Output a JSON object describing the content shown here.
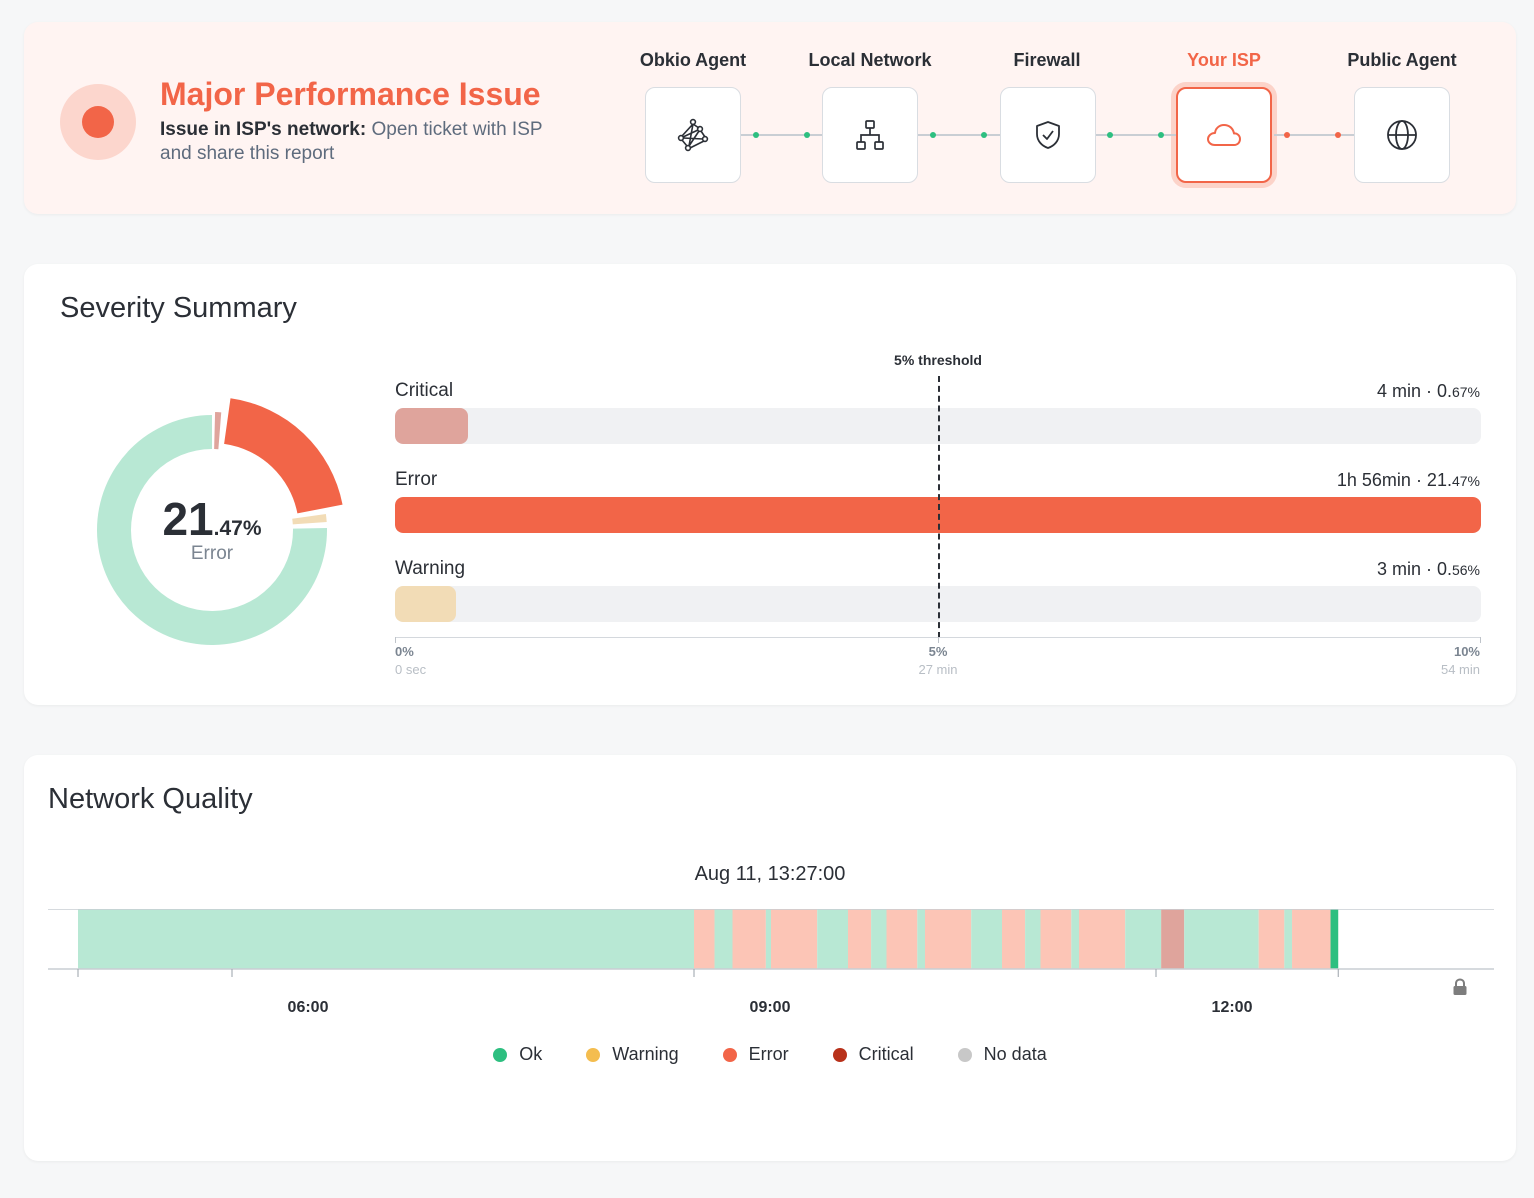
{
  "header": {
    "title": "Major Performance Issue",
    "desc_bold": "Issue in ISP's network:",
    "desc_rest": " Open ticket with ISP and share this report",
    "colors": {
      "accent": "#f26548",
      "ok": "#2dbf80"
    },
    "nodes": [
      {
        "label": "Obkio Agent",
        "icon": "network-graph-icon",
        "active": false
      },
      {
        "label": "Local Network",
        "icon": "sitemap-icon",
        "active": false
      },
      {
        "label": "Firewall",
        "icon": "shield-check-icon",
        "active": false
      },
      {
        "label": "Your ISP",
        "icon": "cloud-icon",
        "active": true
      },
      {
        "label": "Public Agent",
        "icon": "globe-icon",
        "active": false
      }
    ],
    "connectors": [
      "ok",
      "ok",
      "ok",
      "error"
    ]
  },
  "severity": {
    "title": "Severity Summary",
    "donut": {
      "value_int": "21",
      "value_dec": ".47%",
      "label": "Error",
      "slices": [
        {
          "name": "Critical",
          "percent": 0.67,
          "color": "#dfa49c"
        },
        {
          "name": "Error",
          "percent": 21.47,
          "color": "#f26548"
        },
        {
          "name": "Warning",
          "percent": 0.56,
          "color": "#f2dcb6"
        },
        {
          "name": "Ok",
          "percent": 77.3,
          "color": "#b8e8d4"
        }
      ]
    },
    "threshold_label": "5% threshold",
    "bars": [
      {
        "label": "Critical",
        "time": "4 min · 0.",
        "pct": "67%",
        "percent": 0.67,
        "color": "#dfa49c"
      },
      {
        "label": "Error",
        "time": "1h 56min · 21.",
        "pct": "47%",
        "percent": 21.47,
        "color": "#f26548"
      },
      {
        "label": "Warning",
        "time": "3 min · 0.",
        "pct": "56%",
        "percent": 0.56,
        "color": "#f2dcb6"
      }
    ],
    "scale": [
      {
        "pct": "0%",
        "time": "0 sec"
      },
      {
        "pct": "5%",
        "time": "27 min"
      },
      {
        "pct": "10%",
        "time": "54 min"
      }
    ]
  },
  "network_quality": {
    "title": "Network Quality",
    "date": "Aug 11, 13:27:00",
    "axis_labels": [
      "06:00",
      "09:00",
      "12:00"
    ],
    "legend": [
      {
        "label": "Ok",
        "color": "#2dbf80"
      },
      {
        "label": "Warning",
        "color": "#f4bd4f"
      },
      {
        "label": "Error",
        "color": "#f26548"
      },
      {
        "label": "Critical",
        "color": "#b8311a"
      },
      {
        "label": "No data",
        "color": "#c8c8c8"
      }
    ],
    "segment_colors": {
      "ok": "#b8e8d4",
      "error": "#fcc5b6",
      "critical": "#dfa49c",
      "current": "#2dbf80"
    },
    "timeline_start": "05:00",
    "timeline_end": "13:30",
    "segments": [
      {
        "from": "05:00",
        "to": "09:00",
        "state": "ok"
      },
      {
        "from": "09:00",
        "to": "09:08",
        "state": "error"
      },
      {
        "from": "09:08",
        "to": "09:15",
        "state": "ok"
      },
      {
        "from": "09:15",
        "to": "09:28",
        "state": "error"
      },
      {
        "from": "09:28",
        "to": "09:30",
        "state": "ok"
      },
      {
        "from": "09:30",
        "to": "09:48",
        "state": "error"
      },
      {
        "from": "09:48",
        "to": "10:00",
        "state": "ok"
      },
      {
        "from": "10:00",
        "to": "10:09",
        "state": "error"
      },
      {
        "from": "10:09",
        "to": "10:15",
        "state": "ok"
      },
      {
        "from": "10:15",
        "to": "10:27",
        "state": "error"
      },
      {
        "from": "10:27",
        "to": "10:30",
        "state": "ok"
      },
      {
        "from": "10:30",
        "to": "10:48",
        "state": "error"
      },
      {
        "from": "10:48",
        "to": "11:00",
        "state": "ok"
      },
      {
        "from": "11:00",
        "to": "11:09",
        "state": "error"
      },
      {
        "from": "11:09",
        "to": "11:15",
        "state": "ok"
      },
      {
        "from": "11:15",
        "to": "11:27",
        "state": "error"
      },
      {
        "from": "11:27",
        "to": "11:30",
        "state": "ok"
      },
      {
        "from": "11:30",
        "to": "11:48",
        "state": "error"
      },
      {
        "from": "11:48",
        "to": "12:02",
        "state": "ok"
      },
      {
        "from": "12:02",
        "to": "12:11",
        "state": "critical"
      },
      {
        "from": "12:11",
        "to": "12:40",
        "state": "ok"
      },
      {
        "from": "12:40",
        "to": "12:50",
        "state": "error"
      },
      {
        "from": "12:50",
        "to": "12:53",
        "state": "ok"
      },
      {
        "from": "12:53",
        "to": "13:08",
        "state": "error"
      },
      {
        "from": "13:08",
        "to": "13:11",
        "state": "current"
      }
    ],
    "lock_icon": "lock-icon"
  }
}
